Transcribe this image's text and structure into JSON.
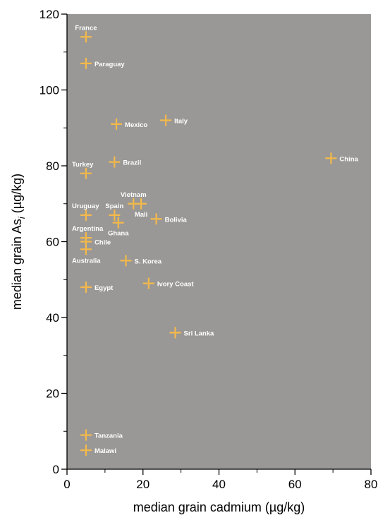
{
  "chart_data": {
    "type": "scatter",
    "title": "",
    "xlabel": "median grain cadmium (µg/kg)",
    "ylabel_main": "median grain As",
    "ylabel_sub": "i",
    "ylabel_unit": " (µg/kg)",
    "xlim": [
      0,
      80
    ],
    "ylim": [
      0,
      120
    ],
    "x_ticks": [
      0,
      20,
      40,
      60,
      80
    ],
    "y_ticks": [
      0,
      20,
      40,
      60,
      80,
      100,
      120
    ],
    "grid": false,
    "plot_background": "#999896",
    "marker_color": "#f5b94a",
    "points": [
      {
        "label": "France",
        "x": 5,
        "y": 114,
        "label_pos": "above"
      },
      {
        "label": "Paraguay",
        "x": 5,
        "y": 107,
        "label_pos": "right"
      },
      {
        "label": "Mexico",
        "x": 13,
        "y": 91,
        "label_pos": "right"
      },
      {
        "label": "Italy",
        "x": 26,
        "y": 92,
        "label_pos": "right"
      },
      {
        "label": "Turkey",
        "x": 5,
        "y": 78,
        "label_pos": "above-left"
      },
      {
        "label": "Brazil",
        "x": 12.5,
        "y": 81,
        "label_pos": "right"
      },
      {
        "label": "China",
        "x": 69.5,
        "y": 82,
        "label_pos": "right"
      },
      {
        "label": "Uruguay",
        "x": 5,
        "y": 67,
        "label_pos": "above-left"
      },
      {
        "label": "Spain",
        "x": 12.5,
        "y": 67,
        "label_pos": "above"
      },
      {
        "label": "Vietnam",
        "x": 17.5,
        "y": 70,
        "label_pos": "above"
      },
      {
        "label": "Mali",
        "x": 19.5,
        "y": 70,
        "label_pos": "below"
      },
      {
        "label": "Bolivia",
        "x": 23.5,
        "y": 66,
        "label_pos": "right"
      },
      {
        "label": "Ghana",
        "x": 13.5,
        "y": 65,
        "label_pos": "below"
      },
      {
        "label": "Argentina",
        "x": 5,
        "y": 61,
        "label_pos": "above-left"
      },
      {
        "label": "Chile",
        "x": 5,
        "y": 60,
        "label_pos": "right"
      },
      {
        "label": "Australia",
        "x": 5,
        "y": 58,
        "label_pos": "below-left"
      },
      {
        "label": "S. Korea",
        "x": 15.5,
        "y": 55,
        "label_pos": "right"
      },
      {
        "label": "Egypt",
        "x": 5,
        "y": 48,
        "label_pos": "right"
      },
      {
        "label": "Ivory Coast",
        "x": 21.5,
        "y": 49,
        "label_pos": "right"
      },
      {
        "label": "Sri Lanka",
        "x": 28.5,
        "y": 36,
        "label_pos": "right"
      },
      {
        "label": "Tanzania",
        "x": 5,
        "y": 9,
        "label_pos": "right"
      },
      {
        "label": "Malawi",
        "x": 5,
        "y": 5,
        "label_pos": "right"
      }
    ]
  }
}
